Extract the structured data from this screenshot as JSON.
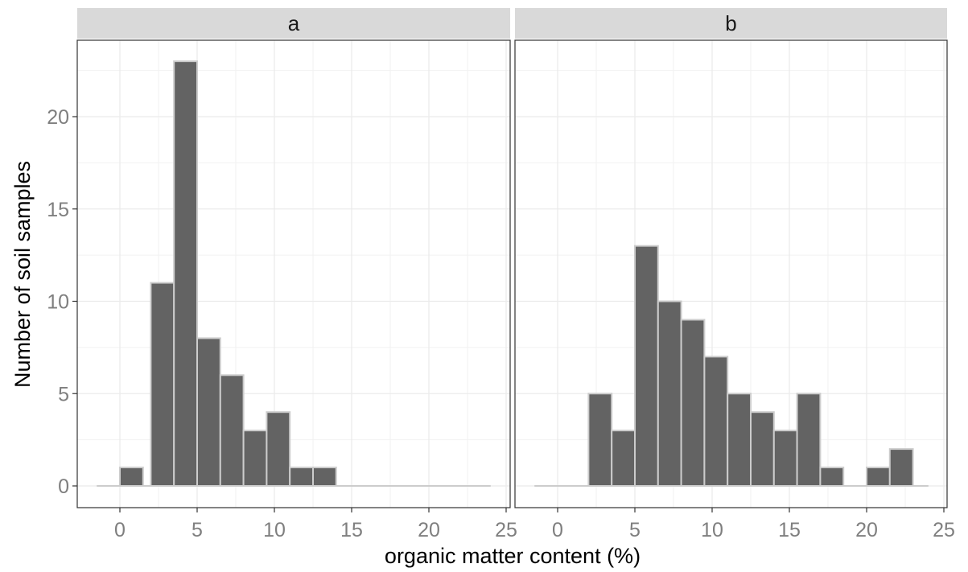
{
  "chart_data": {
    "type": "bar",
    "subtype": "histogram-facets",
    "xlabel": "organic matter content (%)",
    "ylabel": "Number of soil samples",
    "xlim": [
      -2.5,
      25
    ],
    "ylim": [
      -1,
      24.5
    ],
    "x_ticks": [
      "0",
      "5",
      "10",
      "15",
      "20",
      "25"
    ],
    "y_ticks": [
      "0",
      "5",
      "10",
      "15",
      "20"
    ],
    "bin_width": 1.5,
    "grid": true,
    "bar_fill": "#636363",
    "bar_stroke": "#cccccc",
    "strip_fill": "#d9d9d9",
    "panels": [
      {
        "label": "a",
        "baseline_x": [
          -1.5,
          24
        ],
        "bins": [
          {
            "x": 0,
            "count": 1
          },
          {
            "x": 1.5,
            "count": 0
          },
          {
            "x": 2,
            "count": 11
          },
          {
            "x": 3.5,
            "count": 23
          },
          {
            "x": 5,
            "count": 8
          },
          {
            "x": 6.5,
            "count": 6
          },
          {
            "x": 8,
            "count": 3
          },
          {
            "x": 9.5,
            "count": 4
          },
          {
            "x": 11,
            "count": 1
          },
          {
            "x": 12.5,
            "count": 1
          }
        ]
      },
      {
        "label": "b",
        "baseline_x": [
          -1.5,
          24
        ],
        "bins": [
          {
            "x": 2,
            "count": 5
          },
          {
            "x": 3.5,
            "count": 3
          },
          {
            "x": 5,
            "count": 13
          },
          {
            "x": 6.5,
            "count": 10
          },
          {
            "x": 8,
            "count": 9
          },
          {
            "x": 9.5,
            "count": 7
          },
          {
            "x": 11,
            "count": 5
          },
          {
            "x": 12.5,
            "count": 4
          },
          {
            "x": 14,
            "count": 3
          },
          {
            "x": 15.5,
            "count": 5
          },
          {
            "x": 17,
            "count": 1
          },
          {
            "x": 20,
            "count": 1
          },
          {
            "x": 21.5,
            "count": 2
          }
        ]
      }
    ]
  }
}
